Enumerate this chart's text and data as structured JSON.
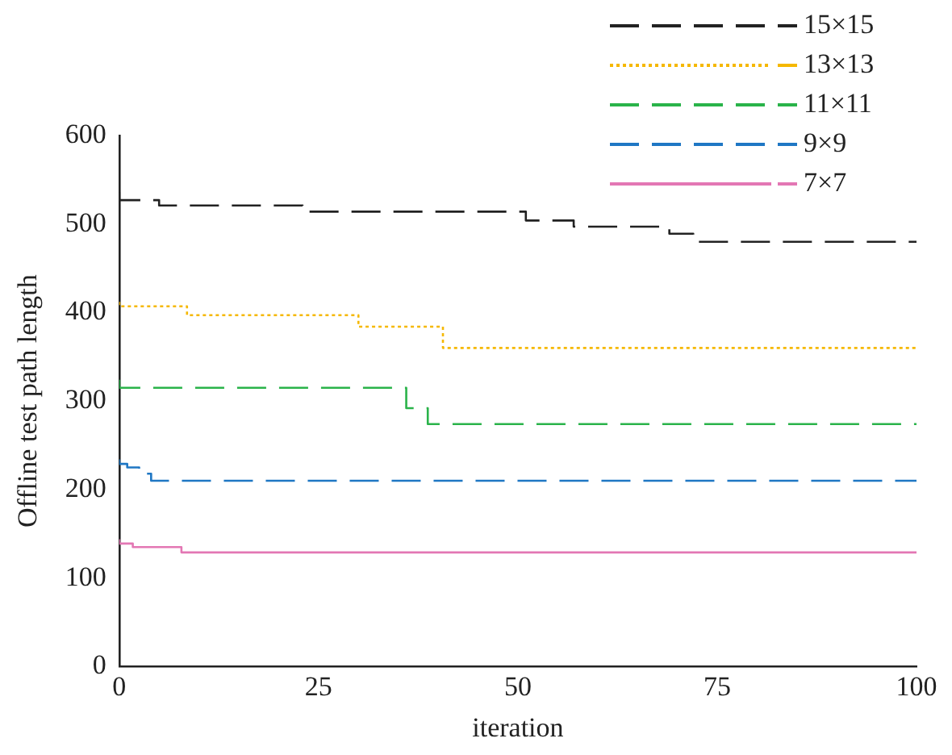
{
  "chart_data": {
    "type": "step",
    "xlabel": "iteration",
    "ylabel": "Offline test path length",
    "xlim": [
      0,
      100
    ],
    "xticks": [
      0,
      25,
      50,
      75,
      100
    ],
    "ylim": [
      0,
      600
    ],
    "yticks": [
      0,
      100,
      200,
      300,
      400,
      500,
      600
    ],
    "grid": false,
    "legend": "top right",
    "marker": "none",
    "series": [
      {
        "name": "15×15",
        "color": "#222222",
        "line_style": "dashed",
        "x": [
          0,
          5,
          23,
          51,
          57,
          69,
          72,
          75,
          100
        ],
        "values": [
          536,
          527,
          521,
          514,
          504,
          497,
          489,
          480,
          480
        ]
      },
      {
        "name": "13×13",
        "color": "#f5b800",
        "line_style": "dotted",
        "x": [
          0,
          8.5,
          30,
          40.6,
          60.4,
          100
        ],
        "values": [
          412,
          407,
          397,
          384,
          360,
          360
        ]
      },
      {
        "name": "11×11",
        "color": "#2ab34a",
        "line_style": "dashed",
        "x": [
          0,
          7.4,
          36,
          38.7,
          50.4,
          100
        ],
        "values": [
          324,
          315,
          315,
          292,
          274,
          274
        ]
      },
      {
        "name": "9×9",
        "color": "#1f77c4",
        "line_style": "dashed",
        "x": [
          0,
          1,
          2.5,
          4,
          23,
          100
        ],
        "values": [
          234,
          229,
          225,
          218,
          210,
          210
        ]
      },
      {
        "name": "7×7",
        "color": "#e377b4",
        "line_style": "solid",
        "x": [
          0,
          1.7,
          7.8,
          13.4,
          100
        ],
        "values": [
          144,
          139,
          135,
          129,
          129
        ]
      }
    ]
  }
}
